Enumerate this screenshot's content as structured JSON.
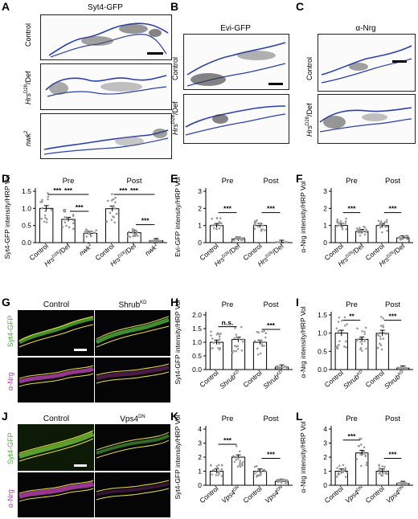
{
  "panels": {
    "A": {
      "letter": "A",
      "title": "Syt4-GFP",
      "rows": [
        "Control",
        "Hrs",
        "Def",
        "nwk"
      ],
      "row_sup": {
        "hrs": "D28",
        "nwk": "2"
      }
    },
    "B": {
      "letter": "B",
      "title": "Evi-GFP",
      "rows": [
        "Control",
        "Hrs",
        "Def"
      ],
      "row_sup": "D28"
    },
    "C": {
      "letter": "C",
      "title": "α-Nrg",
      "rows": [
        "Control",
        "Hrs",
        "Def"
      ],
      "row_sup": "D28"
    },
    "G": {
      "letter": "G",
      "cols": [
        "Control",
        "Shrub"
      ],
      "col_sup": "KD",
      "rows": [
        "Syt4-GFP",
        "α-Nrg"
      ]
    },
    "J": {
      "letter": "J",
      "cols": [
        "Control",
        "Vps4"
      ],
      "col_sup": "DN",
      "rows": [
        "Syt4-GFP",
        "α-Nrg"
      ]
    }
  },
  "colors": {
    "syt4_green": "#4caf3a",
    "nrg_magenta": "#b23fa8",
    "outline_yellow": "#e8e040",
    "outline_blue": "#2b3fb0",
    "bar_fill": "#ffffff",
    "dot_gray": "#9a9a9a"
  },
  "chart_data": [
    {
      "panel": "D",
      "type": "bar",
      "ylabel": "Syt4-GFP intensity/HRP Vol",
      "ylim": [
        0,
        1.5
      ],
      "yticks": [
        "0.0",
        "0.5",
        "1.0",
        "1.5"
      ],
      "categories": [
        "Control",
        "Hrs",
        "nwk",
        "Control",
        "Hrs",
        "nwk"
      ],
      "cat_sup": [
        "",
        "D28",
        "2",
        "",
        "D28",
        "2"
      ],
      "cat_suffix": [
        "",
        "/Def",
        "",
        "",
        "/Def",
        ""
      ],
      "values": [
        1.0,
        0.68,
        0.27,
        0.99,
        0.29,
        0.06
      ],
      "groups": [
        {
          "label": "Pre",
          "span": [
            0,
            2
          ]
        },
        {
          "label": "Post",
          "span": [
            3,
            5
          ]
        }
      ],
      "sig": [
        {
          "from": 0,
          "to": 1,
          "label": "***"
        },
        {
          "from": 1,
          "to": 2,
          "label": "***"
        },
        {
          "from": 0,
          "to": 2,
          "label": "***"
        },
        {
          "from": 3,
          "to": 4,
          "label": "***"
        },
        {
          "from": 4,
          "to": 5,
          "label": "***"
        },
        {
          "from": 3,
          "to": 5,
          "label": "***"
        }
      ]
    },
    {
      "panel": "E",
      "type": "bar",
      "ylabel": "Evi-GFP intensity/HRP Vol",
      "ylim": [
        0,
        3
      ],
      "yticks": [
        "0",
        "1",
        "2",
        "3"
      ],
      "categories": [
        "Control",
        "Hrs",
        "Control",
        "Hrs"
      ],
      "cat_sup": [
        "",
        "D28",
        "",
        "D28"
      ],
      "cat_suffix": [
        "",
        "/Def",
        "",
        "/Def"
      ],
      "values": [
        1.0,
        0.22,
        1.0,
        0.02
      ],
      "groups": [
        {
          "label": "Pre",
          "span": [
            0,
            1
          ]
        },
        {
          "label": "Post",
          "span": [
            2,
            3
          ]
        }
      ],
      "sig": [
        {
          "from": 0,
          "to": 1,
          "label": "***"
        },
        {
          "from": 2,
          "to": 3,
          "label": "***"
        }
      ]
    },
    {
      "panel": "F",
      "type": "bar",
      "ylabel": "α-Nrg intensity/HRP Vol",
      "ylim": [
        0,
        3
      ],
      "yticks": [
        "0",
        "1",
        "2",
        "3"
      ],
      "categories": [
        "Control",
        "Hrs",
        "Control",
        "Hrs"
      ],
      "cat_sup": [
        "",
        "D28",
        "",
        "D28"
      ],
      "cat_suffix": [
        "",
        "/Def",
        "",
        "/Def"
      ],
      "values": [
        1.0,
        0.65,
        1.0,
        0.28
      ],
      "groups": [
        {
          "label": "Pre",
          "span": [
            0,
            1
          ]
        },
        {
          "label": "Post",
          "span": [
            2,
            3
          ]
        }
      ],
      "sig": [
        {
          "from": 0,
          "to": 1,
          "label": "***"
        },
        {
          "from": 2,
          "to": 3,
          "label": "***"
        }
      ]
    },
    {
      "panel": "H",
      "type": "bar",
      "ylabel": "Syt4-GFP intensity/HRP Vol",
      "ylim": [
        0,
        2
      ],
      "yticks": [
        "0.0",
        "0.5",
        "1.0",
        "1.5",
        "2.0"
      ],
      "categories": [
        "Control",
        "Shrub",
        "Control",
        "Shrub"
      ],
      "cat_sup": [
        "",
        "KD",
        "",
        "KD"
      ],
      "cat_suffix": [
        "",
        "",
        "",
        ""
      ],
      "values": [
        1.0,
        1.1,
        1.0,
        0.09
      ],
      "groups": [
        {
          "label": "Pre",
          "span": [
            0,
            1
          ]
        },
        {
          "label": "Post",
          "span": [
            2,
            3
          ]
        }
      ],
      "sig": [
        {
          "from": 0,
          "to": 1,
          "label": "n.s."
        },
        {
          "from": 2,
          "to": 3,
          "label": "***"
        }
      ]
    },
    {
      "panel": "I",
      "type": "bar",
      "ylabel": "α-Nrg intensity/HRP Vol",
      "ylim": [
        0,
        1.5
      ],
      "yticks": [
        "0.0",
        "0.5",
        "1.0",
        "1.5"
      ],
      "categories": [
        "Control",
        "Shrub",
        "Control",
        "Shrub"
      ],
      "cat_sup": [
        "",
        "KD",
        "",
        "KD"
      ],
      "cat_suffix": [
        "",
        "",
        "",
        ""
      ],
      "values": [
        1.0,
        0.83,
        1.0,
        0.04
      ],
      "groups": [
        {
          "label": "Pre",
          "span": [
            0,
            1
          ]
        },
        {
          "label": "Post",
          "span": [
            2,
            3
          ]
        }
      ],
      "sig": [
        {
          "from": 0,
          "to": 1,
          "label": "**"
        },
        {
          "from": 2,
          "to": 3,
          "label": "***"
        }
      ]
    },
    {
      "panel": "K",
      "type": "bar",
      "ylabel": "Syt4-GFP intensity/HRP Vol",
      "ylim": [
        0,
        4
      ],
      "yticks": [
        "0",
        "1",
        "2",
        "3",
        "4"
      ],
      "categories": [
        "Control",
        "Vps4",
        "Control",
        "Vps4"
      ],
      "cat_sup": [
        "",
        "DN",
        "",
        "DN"
      ],
      "cat_suffix": [
        "",
        "",
        "",
        ""
      ],
      "values": [
        1.0,
        2.0,
        1.0,
        0.28
      ],
      "groups": [
        {
          "label": "Pre",
          "span": [
            0,
            1
          ]
        },
        {
          "label": "Post",
          "span": [
            2,
            3
          ]
        }
      ],
      "sig": [
        {
          "from": 0,
          "to": 1,
          "label": "***"
        },
        {
          "from": 2,
          "to": 3,
          "label": "***"
        }
      ]
    },
    {
      "panel": "L",
      "type": "bar",
      "ylabel": "α-Nrg intensity/HRP Vol",
      "ylim": [
        0,
        4
      ],
      "yticks": [
        "0",
        "1",
        "2",
        "3",
        "4"
      ],
      "categories": [
        "Control",
        "Vps4",
        "Control",
        "Vps4"
      ],
      "cat_sup": [
        "",
        "DN",
        "",
        "DN"
      ],
      "cat_suffix": [
        "",
        "",
        "",
        ""
      ],
      "values": [
        1.0,
        2.3,
        1.0,
        0.12
      ],
      "groups": [
        {
          "label": "Pre",
          "span": [
            0,
            1
          ]
        },
        {
          "label": "Post",
          "span": [
            2,
            3
          ]
        }
      ],
      "sig": [
        {
          "from": 0,
          "to": 1,
          "label": "***"
        },
        {
          "from": 2,
          "to": 3,
          "label": "***"
        }
      ]
    }
  ]
}
